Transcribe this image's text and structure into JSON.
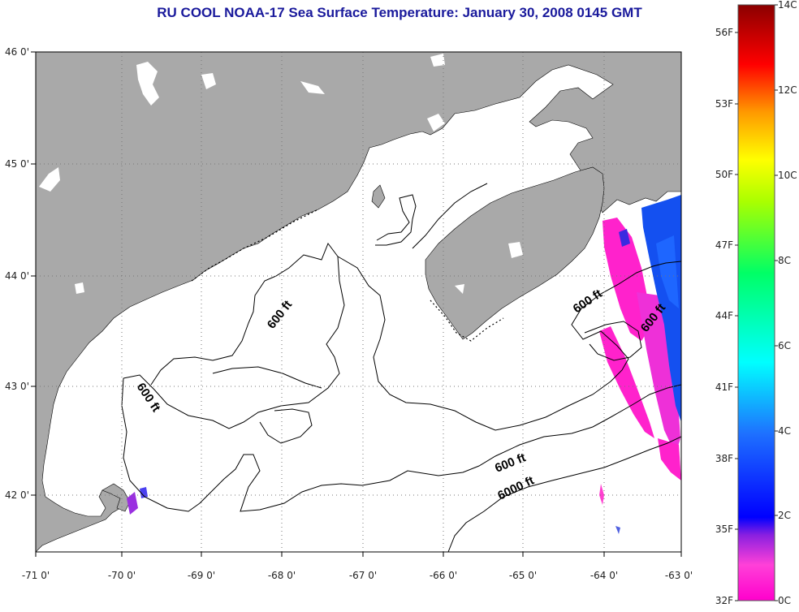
{
  "title": "RU COOL  NOAA-17  Sea Surface Temperature:  January 30, 2008 0145 GMT",
  "map": {
    "lon_ticks": [
      "-71 0'",
      "-70 0'",
      "-69 0'",
      "-68 0'",
      "-67 0'",
      "-66 0'",
      "-65 0'",
      "-64 0'",
      "-63 0'"
    ],
    "lat_ticks": [
      "46 0'",
      "45 0'",
      "44 0'",
      "43 0'",
      "42 0'"
    ],
    "contours": [
      {
        "label": "600 ft"
      },
      {
        "label": "600 ft"
      },
      {
        "label": "600 ft"
      },
      {
        "label": "600 ft"
      },
      {
        "label": "6000 ft"
      }
    ],
    "colors": {
      "land": "#a9a9a9",
      "ocean": "#ffffff",
      "cloud_mask": "#ffffff",
      "graticule": "#777777"
    }
  },
  "colorbar": {
    "celsius_labels": [
      "14C",
      "12C",
      "10C",
      "8C",
      "6C",
      "4C",
      "2C",
      "0C"
    ],
    "fahrenheit_labels": [
      "56F",
      "53F",
      "50F",
      "47F",
      "44F",
      "41F",
      "38F",
      "35F",
      "32F"
    ],
    "range_celsius": [
      0,
      14
    ]
  }
}
